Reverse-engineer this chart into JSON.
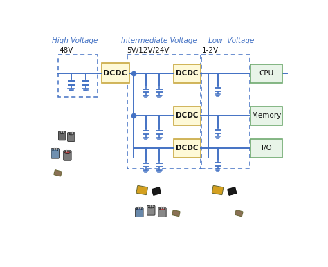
{
  "bg_color": "#ffffff",
  "line_color": "#4472c4",
  "box_fill_dcdc": "#fef9d7",
  "box_fill_load": "#e8f4e8",
  "box_border_dcdc": "#c8a840",
  "box_border_load": "#70aa70",
  "dashed_border": "#4472c4",
  "text_color_header": "#4472c4",
  "text_color_box": "#111111",
  "header_High": "High Voltage",
  "header_Int": "Intermediate Voltage",
  "header_Low": "Low  Voltage",
  "label_48V": "48V",
  "label_5V": "5V/12V/24V",
  "label_12V": "1-2V"
}
